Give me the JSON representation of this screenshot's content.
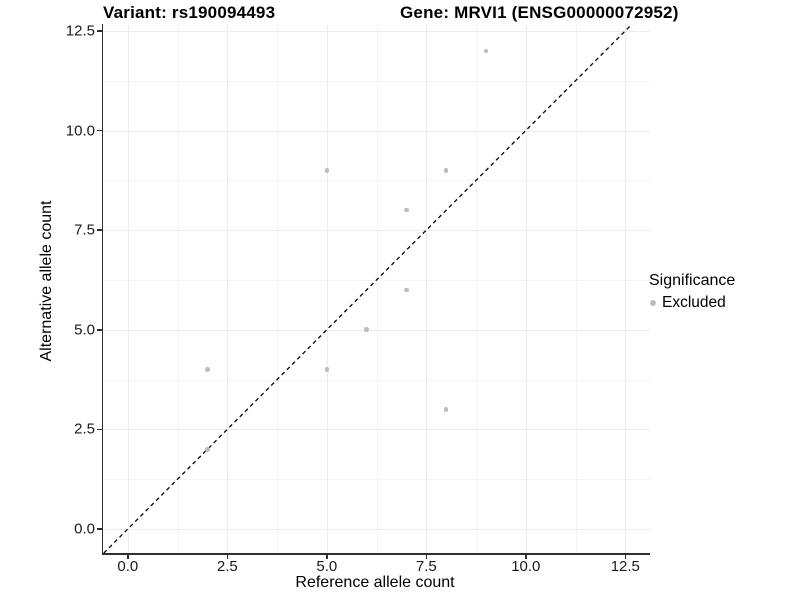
{
  "chart_data": {
    "type": "scatter",
    "title_left": "Variant: rs190094493",
    "title_right": "Gene: MRVI1 (ENSG00000072952)",
    "xlabel": "Reference allele count",
    "ylabel": "Alternative allele count",
    "xlim": [
      -0.623,
      13.13
    ],
    "ylim": [
      -0.602,
      12.67
    ],
    "x_ticks": {
      "values": [
        0,
        2.5,
        5,
        7.5,
        10,
        12.5
      ],
      "labels": [
        "0.0",
        "2.5",
        "5.0",
        "7.5",
        "10.0",
        "12.5"
      ]
    },
    "y_ticks": {
      "values": [
        0,
        2.5,
        5,
        7.5,
        10,
        12.5
      ],
      "labels": [
        "0.0",
        "2.5",
        "5.0",
        "7.5",
        "10.0",
        "12.5"
      ]
    },
    "grid": {
      "major": true,
      "minor": true
    },
    "series": [
      {
        "name": "Excluded",
        "color": "#bdbdbd",
        "points": [
          [
            9,
            12
          ],
          [
            5,
            9
          ],
          [
            8,
            9
          ],
          [
            7,
            8
          ],
          [
            7,
            6
          ],
          [
            6,
            5
          ],
          [
            2,
            4
          ],
          [
            5,
            4
          ],
          [
            8,
            3
          ],
          [
            2,
            2
          ]
        ]
      }
    ],
    "reference_line": {
      "kind": "identity",
      "slope": 1,
      "intercept": 0,
      "style": "dashed",
      "color": "#000000"
    },
    "legend": {
      "title": "Significance",
      "position": "right",
      "items": [
        {
          "label": "Excluded",
          "color": "#bdbdbd",
          "marker": "circle"
        }
      ]
    },
    "colors": {
      "grid_major": "#ececec",
      "grid_minor": "#f4f4f4",
      "axis": "#2f2f2f",
      "text": "#1a1a1a"
    }
  }
}
